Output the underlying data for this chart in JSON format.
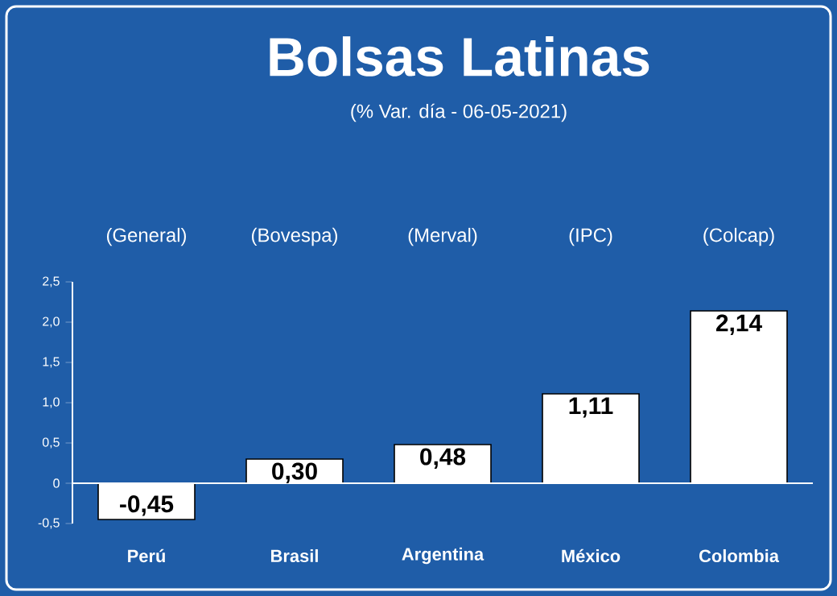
{
  "chart_data": {
    "type": "bar",
    "title": "Bolsas Latinas",
    "subtitle": "(% Var. día - 06-05-2021)",
    "annotations": [
      "(General)",
      "(Bovespa)",
      "(Merval)",
      "(IPC)",
      "(Colcap)"
    ],
    "categories": [
      "Perú",
      "Brasil",
      "Argentina",
      "México",
      "Colombia"
    ],
    "values": [
      -0.45,
      0.3,
      0.48,
      1.11,
      2.14
    ],
    "value_labels": [
      "-0,45",
      "0,30",
      "0,48",
      "1,11",
      "2,14"
    ],
    "color": "#ffffff",
    "ylim": [
      -0.5,
      2.5
    ],
    "yticks": [
      {
        "value": -0.5,
        "label": "-0,5"
      },
      0,
      {
        "value": 0.5,
        "label": "0,5"
      },
      {
        "value": 1.0,
        "label": "1,0"
      },
      {
        "value": 1.5,
        "label": "1,5"
      },
      {
        "value": 2.0,
        "label": "2,0"
      },
      {
        "value": 2.5,
        "label": "2,5"
      }
    ]
  }
}
